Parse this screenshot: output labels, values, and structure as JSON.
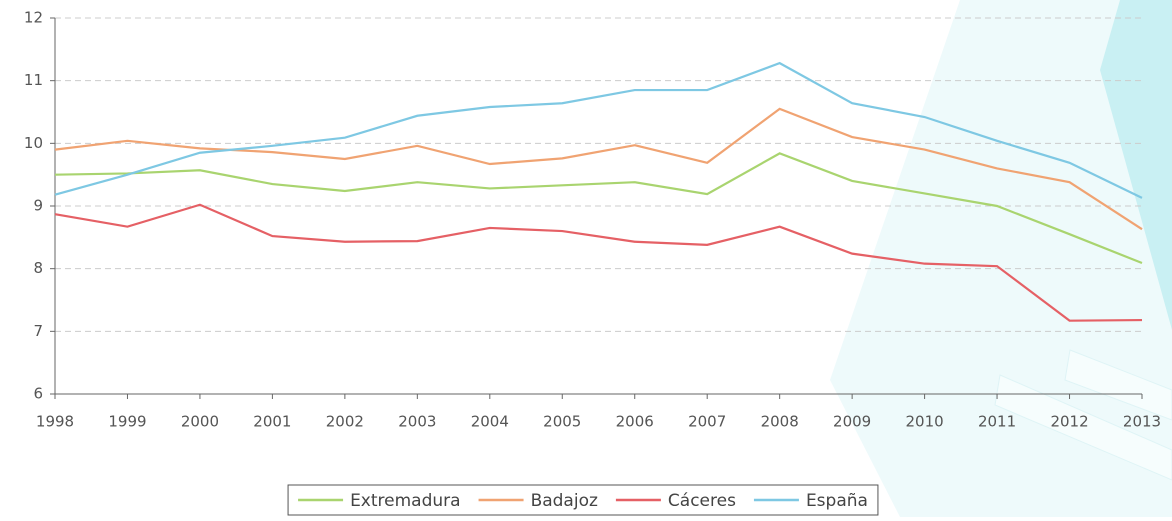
{
  "chart_data": {
    "type": "line",
    "categories": [
      "1998",
      "1999",
      "2000",
      "2001",
      "2002",
      "2003",
      "2004",
      "2005",
      "2006",
      "2007",
      "2008",
      "2009",
      "2010",
      "2011",
      "2012",
      "2013"
    ],
    "series": [
      {
        "name": "Extremadura",
        "color": "#a9d46f",
        "values": [
          9.5,
          9.52,
          9.57,
          9.35,
          9.24,
          9.38,
          9.28,
          9.33,
          9.38,
          9.19,
          9.84,
          9.4,
          9.2,
          9.0,
          8.55,
          8.09
        ]
      },
      {
        "name": "Badajoz",
        "color": "#f0a372",
        "values": [
          9.9,
          10.04,
          9.92,
          9.86,
          9.75,
          9.96,
          9.67,
          9.76,
          9.97,
          9.69,
          10.55,
          10.1,
          9.9,
          9.6,
          9.38,
          8.63
        ]
      },
      {
        "name": "Cáceres",
        "color": "#e56065",
        "values": [
          8.87,
          8.67,
          9.02,
          8.52,
          8.43,
          8.44,
          8.65,
          8.6,
          8.43,
          8.38,
          8.67,
          8.24,
          8.08,
          8.04,
          7.17,
          7.18
        ]
      },
      {
        "name": "España",
        "color": "#7ec8e3",
        "values": [
          9.18,
          9.5,
          9.85,
          9.96,
          10.09,
          10.44,
          10.58,
          10.64,
          10.85,
          10.85,
          11.28,
          10.64,
          10.42,
          10.04,
          9.69,
          9.13
        ]
      }
    ],
    "ylim": [
      6,
      12
    ],
    "yticks": [
      6,
      7,
      8,
      9,
      10,
      11,
      12
    ],
    "grid": true,
    "legend": "bottom"
  }
}
